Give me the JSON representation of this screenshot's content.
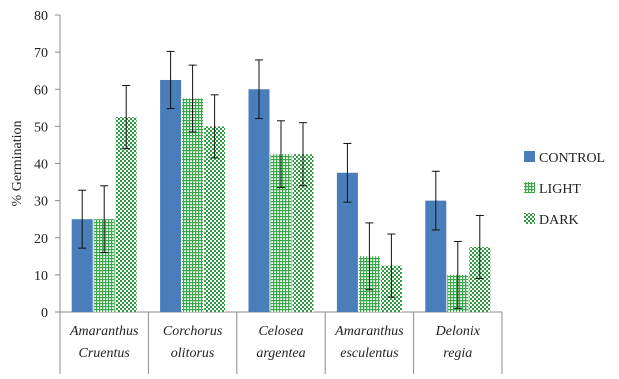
{
  "chart_data": {
    "type": "bar",
    "title": "",
    "xlabel": "",
    "ylabel": "% Germination",
    "ylim": [
      0,
      80
    ],
    "yticks": [
      0,
      10,
      20,
      30,
      40,
      50,
      60,
      70,
      80
    ],
    "grid": false,
    "legend_position": "right",
    "categories": [
      [
        "Amaranthus",
        "Cruentus"
      ],
      [
        "Corchorus",
        "olitorus"
      ],
      [
        "Celosea",
        "argentea"
      ],
      [
        "Amaranthus",
        "esculentus"
      ],
      [
        "Delonix",
        "regia"
      ]
    ],
    "series": [
      {
        "name": "CONTROL",
        "values": [
          25,
          62.5,
          60,
          37.5,
          30
        ],
        "errors": [
          7.8,
          7.7,
          7.9,
          7.9,
          7.9
        ],
        "color": "#4a7ebb",
        "pattern": "solid"
      },
      {
        "name": "LIGHT",
        "values": [
          25,
          57.5,
          42.5,
          15,
          10
        ],
        "errors": [
          9,
          9,
          9,
          9,
          9
        ],
        "color": "#3aa84a",
        "pattern": "grid"
      },
      {
        "name": "DARK",
        "values": [
          52.5,
          50,
          42.5,
          12.5,
          17.5
        ],
        "errors": [
          8.5,
          8.5,
          8.5,
          8.5,
          8.5
        ],
        "color": "#3aa84a",
        "pattern": "checker"
      }
    ]
  }
}
